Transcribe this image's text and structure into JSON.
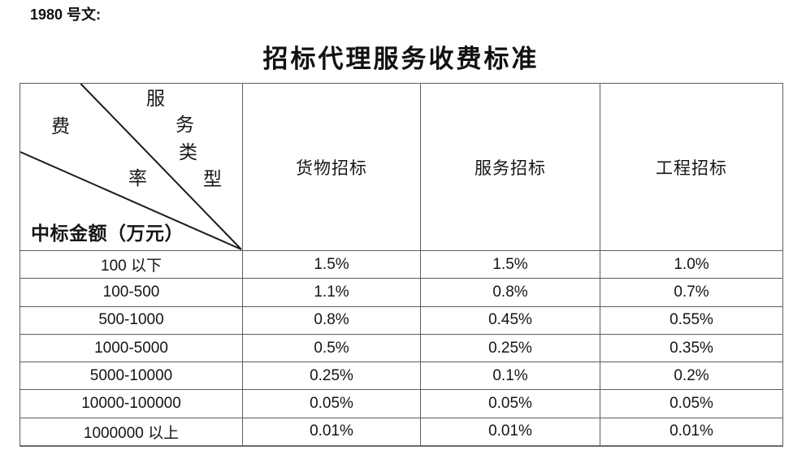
{
  "doc_label": "1980 号文:",
  "title": "招标代理服务收费标准",
  "table": {
    "corner": {
      "type_label": "服务类型",
      "rate_label": "费率",
      "amount_label": "中标金额（万元）"
    },
    "columns": [
      "货物招标",
      "服务招标",
      "工程招标"
    ],
    "rows": [
      {
        "range": "100 以下",
        "values": [
          "1.5%",
          "1.5%",
          "1.0%"
        ]
      },
      {
        "range": "100-500",
        "values": [
          "1.1%",
          "0.8%",
          "0.7%"
        ]
      },
      {
        "range": "500-1000",
        "values": [
          "0.8%",
          "0.45%",
          "0.55%"
        ]
      },
      {
        "range": "1000-5000",
        "values": [
          "0.5%",
          "0.25%",
          "0.35%"
        ]
      },
      {
        "range": "5000-10000",
        "values": [
          "0.25%",
          "0.1%",
          "0.2%"
        ]
      },
      {
        "range": "10000-100000",
        "values": [
          "0.05%",
          "0.05%",
          "0.05%"
        ]
      },
      {
        "range": "1000000 以上",
        "values": [
          "0.01%",
          "0.01%",
          "0.01%"
        ]
      }
    ]
  }
}
